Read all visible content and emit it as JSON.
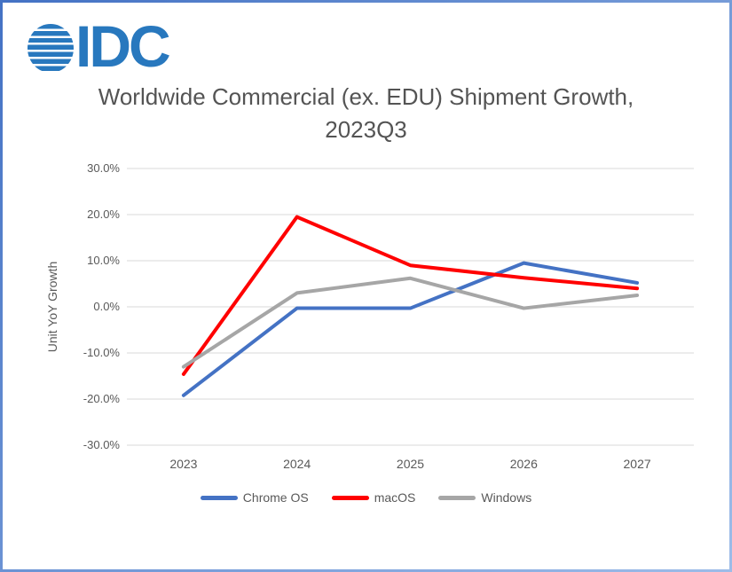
{
  "logo": {
    "text": "IDC",
    "color": "#2878BE"
  },
  "chart": {
    "title_line1": "Worldwide Commercial (ex. EDU) Shipment Growth,",
    "title_line2": "2023Q3",
    "y_axis_title": "Unit YoY Growth",
    "y_tick_labels": [
      "30.0%",
      "20.0%",
      "10.0%",
      "0.0%",
      "-10.0%",
      "-20.0%",
      "-30.0%"
    ],
    "gridline_color": "#D9D9D9",
    "text_color": "#595959"
  },
  "chart_data": {
    "type": "line",
    "title": "Worldwide Commercial (ex. EDU) Shipment Growth, 2023Q3",
    "ylabel": "Unit YoY Growth",
    "categories": [
      "2023",
      "2024",
      "2025",
      "2026",
      "2027"
    ],
    "series": [
      {
        "name": "Chrome OS",
        "color": "#4472C4",
        "values": [
          -19.2,
          -0.3,
          -0.3,
          9.5,
          5.2
        ]
      },
      {
        "name": "macOS",
        "color": "#FF0000",
        "values": [
          -14.6,
          19.5,
          9.0,
          6.3,
          4.0
        ]
      },
      {
        "name": "Windows",
        "color": "#A6A6A6",
        "values": [
          -13.0,
          3.0,
          6.2,
          -0.3,
          2.5
        ]
      }
    ],
    "ylim": [
      -30,
      30
    ],
    "y_tick_step": 10,
    "y_tick_format": "percent_1dp",
    "grid": true,
    "legend_position": "bottom"
  }
}
